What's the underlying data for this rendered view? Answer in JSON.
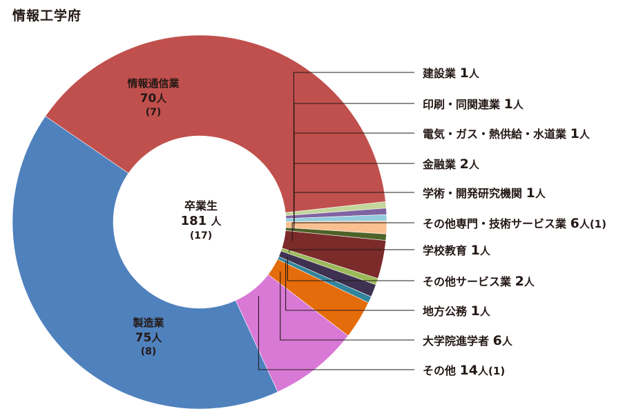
{
  "page": {
    "title": "情報工学府"
  },
  "chart_data": {
    "type": "pie",
    "title": "情報工学府",
    "center": {
      "label": "卒業生",
      "total": "181",
      "unit": "人",
      "sub": "(17)"
    },
    "series": [
      {
        "name": "情報通信業",
        "value": 70,
        "value_label": "70",
        "unit": "人",
        "sub": "(7)",
        "color": "#c0504d"
      },
      {
        "name": "建設業",
        "value": 1,
        "value_label": "1",
        "unit": "人",
        "sub": "",
        "color": "#c3d69b"
      },
      {
        "name": "印刷・同関連業",
        "value": 1,
        "value_label": "1",
        "unit": "人",
        "sub": "",
        "color": "#8064a2"
      },
      {
        "name": "電気・ガス・熱供給・水道業",
        "value": 1,
        "value_label": "1",
        "unit": "人",
        "sub": "",
        "color": "#93cddd"
      },
      {
        "name": "金融業",
        "value": 2,
        "value_label": "2",
        "unit": "人",
        "sub": "",
        "color": "#fac090"
      },
      {
        "name": "学術・開発研究機関",
        "value": 1,
        "value_label": "1",
        "unit": "人",
        "sub": "",
        "color": "#4f6228"
      },
      {
        "name": "その他専門・技術サービス業",
        "value": 6,
        "value_label": "6",
        "unit": "人",
        "sub": "(1)",
        "color": "#7b2b2a"
      },
      {
        "name": "学校教育",
        "value": 1,
        "value_label": "1",
        "unit": "人",
        "sub": "",
        "color": "#9bbb59"
      },
      {
        "name": "その他サービス業",
        "value": 2,
        "value_label": "2",
        "unit": "人",
        "sub": "",
        "color": "#3f3151"
      },
      {
        "name": "地方公務",
        "value": 1,
        "value_label": "1",
        "unit": "人",
        "sub": "",
        "color": "#31859c"
      },
      {
        "name": "大学院進学者",
        "value": 6,
        "value_label": "6",
        "unit": "人",
        "sub": "",
        "color": "#e46c0a"
      },
      {
        "name": "その他",
        "value": 14,
        "value_label": "14",
        "unit": "人",
        "sub": "(1)",
        "color": "#d979d6"
      },
      {
        "name": "製造業",
        "value": 75,
        "value_label": "75",
        "unit": "人",
        "sub": "(8)",
        "color": "#4f81bd"
      }
    ]
  }
}
